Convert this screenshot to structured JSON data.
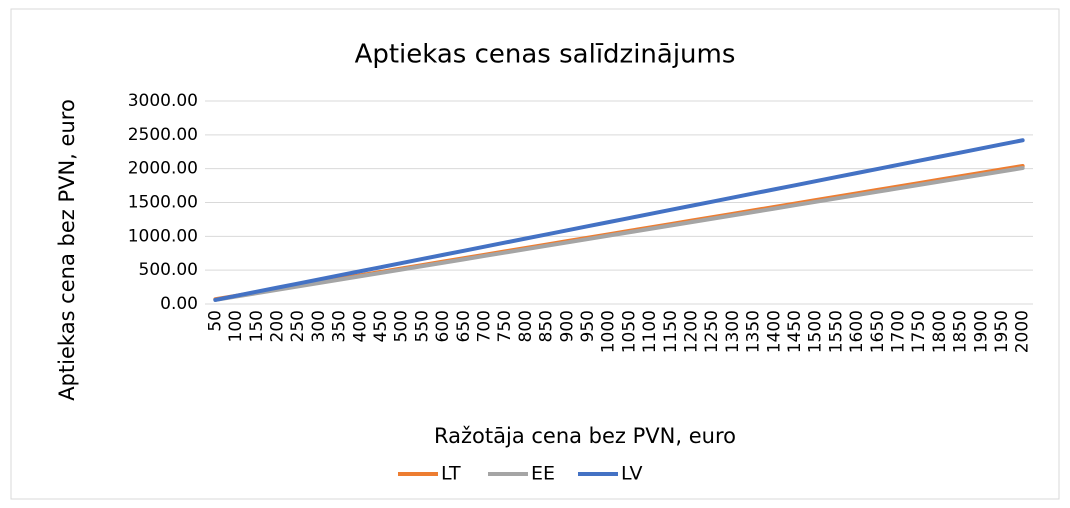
{
  "chart_data": {
    "type": "line",
    "title": "Aptiekas cenas salīdzinājums",
    "x_label": "Ražotāja cena bez PVN, euro",
    "y_label": "Aptiekas cena bez PVN, euro",
    "categories": [
      50,
      100,
      150,
      200,
      250,
      300,
      350,
      400,
      450,
      500,
      550,
      600,
      650,
      700,
      750,
      800,
      850,
      900,
      950,
      1000,
      1050,
      1100,
      1150,
      1200,
      1250,
      1300,
      1350,
      1400,
      1450,
      1500,
      1550,
      1600,
      1650,
      1700,
      1750,
      1800,
      1850,
      1900,
      1950,
      2000
    ],
    "series": [
      {
        "name": "LT",
        "color": "#ed7d31",
        "values": [
          70.5,
          121,
          171.5,
          222,
          272.5,
          323,
          373.5,
          424,
          474.5,
          525,
          575.5,
          626,
          676.5,
          727,
          777.5,
          828,
          878.5,
          929,
          979.5,
          1030,
          1080.5,
          1131,
          1181.5,
          1232,
          1282.5,
          1333,
          1383.5,
          1434,
          1484.5,
          1535,
          1585.5,
          1636,
          1686.5,
          1737,
          1787.5,
          1838,
          1888.5,
          1939,
          1989.5,
          2040
        ]
      },
      {
        "name": "EE",
        "color": "#a5a5a5",
        "values": [
          60,
          110,
          160,
          210,
          260,
          310,
          360,
          410,
          460,
          510,
          560,
          610,
          660,
          710,
          760,
          810,
          860,
          910,
          960,
          1010,
          1060,
          1110,
          1160,
          1210,
          1260,
          1310,
          1360,
          1410,
          1460,
          1510,
          1560,
          1610,
          1660,
          1710,
          1760,
          1810,
          1860,
          1910,
          1960,
          2010
        ]
      },
      {
        "name": "LV",
        "color": "#4472c4",
        "values": [
          60.5,
          121,
          181.5,
          242,
          302.5,
          363,
          423.5,
          484,
          544.5,
          605,
          665.5,
          726,
          786.5,
          847,
          907.5,
          968,
          1028.5,
          1089,
          1149.5,
          1210,
          1270.5,
          1331,
          1391.5,
          1452,
          1512.5,
          1573,
          1633.5,
          1694,
          1754.5,
          1815,
          1875.5,
          1936,
          1996.5,
          2057,
          2117.5,
          2178,
          2238.5,
          2299,
          2359.5,
          2420
        ]
      }
    ],
    "ylim": [
      0,
      3000
    ],
    "yticks": [
      {
        "value": 0,
        "label": "0.00"
      },
      {
        "value": 500,
        "label": "500.00"
      },
      {
        "value": 1000,
        "label": "1000.00"
      },
      {
        "value": 1500,
        "label": "1500.00"
      },
      {
        "value": 2000,
        "label": "2000.00"
      },
      {
        "value": 2500,
        "label": "2500.00"
      },
      {
        "value": 3000,
        "label": "3000.00"
      }
    ],
    "grid": true,
    "legend": "bottom"
  }
}
